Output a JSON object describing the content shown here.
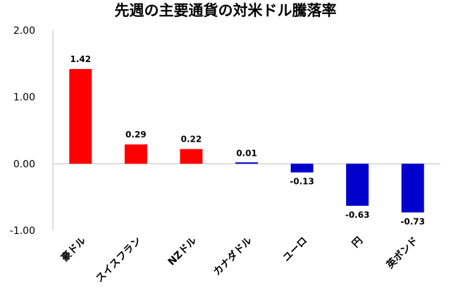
{
  "chart_data": {
    "type": "bar",
    "title": "先週の主要通貨の対米ドル騰落率",
    "categories": [
      "豪ドル",
      "スイスフラン",
      "NZドル",
      "カナダドル",
      "ユーロ",
      "円",
      "英ポンド"
    ],
    "values": [
      1.42,
      0.29,
      0.22,
      0.01,
      -0.13,
      -0.63,
      -0.73
    ],
    "value_labels": [
      "1.42",
      "0.29",
      "0.22",
      "0.01",
      "-0.13",
      "-0.63",
      "-0.73"
    ],
    "y_ticks": [
      "2.00",
      "1.00",
      "0.00",
      "-1.00"
    ],
    "ylim": [
      -1.0,
      2.0
    ],
    "grid": false,
    "legend": "none",
    "colors": {
      "positive": "#ff0000",
      "negative": "#0000cc",
      "axis": "#bfbfbf",
      "text": "#000000"
    }
  }
}
